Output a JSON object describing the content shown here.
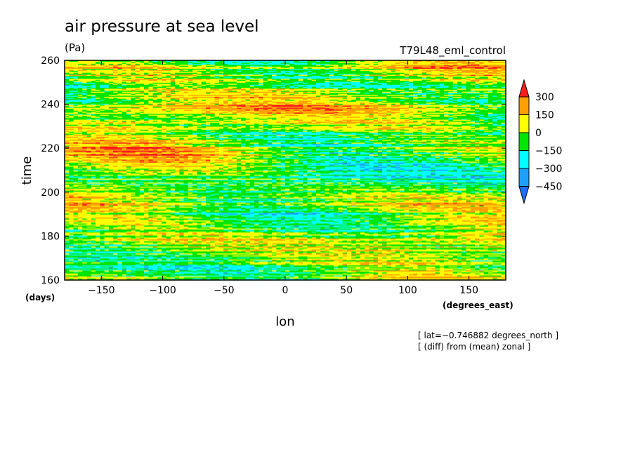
{
  "chart_data": {
    "type": "heatmap",
    "title": "air pressure at sea level",
    "units": "(Pa)",
    "run_label": "T79L48_eml_control",
    "xlabel": "lon",
    "xunits": "(degrees_east)",
    "ylabel": "time",
    "yunits": "(days)",
    "xlim": [
      -180,
      180
    ],
    "ylim": [
      160,
      260
    ],
    "xticks": [
      -150,
      -100,
      -50,
      0,
      50,
      100,
      150
    ],
    "xtick_labels": [
      "−150",
      "−100",
      "−50",
      "0",
      "50",
      "100",
      "150"
    ],
    "yticks": [
      160,
      180,
      200,
      220,
      240,
      260
    ],
    "ytick_labels": [
      "160",
      "180",
      "200",
      "220",
      "240",
      "260"
    ],
    "contour_levels": [
      -450,
      -300,
      -150,
      0,
      150,
      300
    ],
    "level_labels": [
      "300",
      "150",
      "0",
      "−150",
      "−300",
      "−450"
    ],
    "colors": [
      "#1e6eff",
      "#1ea0ff",
      "#00ffff",
      "#00e600",
      "#ffff00",
      "#ffa000",
      "#ff1e1e"
    ],
    "notes": [
      "[ lat=−0.746882 degrees_north ]",
      "[ (diff) from (mean) zonal ]"
    ]
  }
}
